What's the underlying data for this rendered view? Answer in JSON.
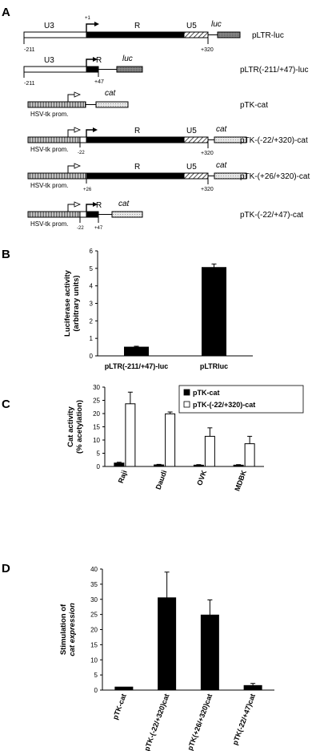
{
  "panel_labels": {
    "a": "A",
    "b": "B",
    "c": "C",
    "d": "D"
  },
  "construct_labels": {
    "u3": "U3",
    "r": "R",
    "u5": "U5",
    "luc": "luc",
    "cat": "cat",
    "hsv": "HSV-tk prom.",
    "n211": "-211",
    "p1": "+1",
    "p320": "+320",
    "p47": "+47",
    "n22": "-22",
    "p26": "+26"
  },
  "constructs": [
    {
      "name": "pLTR-luc"
    },
    {
      "name": "pLTR(-211/+47)-luc"
    },
    {
      "name": "pTK-cat"
    },
    {
      "name": "pTK-(-22/+320)-cat"
    },
    {
      "name": "pTK-(+26/+320)-cat"
    },
    {
      "name": "pTK-(-22/+47)-cat"
    }
  ],
  "chart_data": [
    {
      "panel": "B",
      "type": "bar",
      "ylabel": "Luciferase activity (arbitrary units)",
      "ylabel_lines": [
        "Luciferase activity",
        "(arbitrary units)"
      ],
      "ylim": [
        0,
        6
      ],
      "yticks": [
        "0",
        "1",
        "2",
        "3",
        "4",
        "5",
        "6"
      ],
      "categories": [
        "pLTR(-211/+47)-luc",
        "pLTRluc"
      ],
      "values": [
        0.5,
        5.05
      ],
      "errors": [
        0.05,
        0.2
      ]
    },
    {
      "panel": "C",
      "type": "bar",
      "ylabel": "Cat activity (% acetylation)",
      "ylabel_lines": [
        "Cat activity",
        "(% acetylation)"
      ],
      "ylim": [
        0,
        30
      ],
      "yticks": [
        "0",
        "5",
        "10",
        "15",
        "20",
        "25",
        "30"
      ],
      "categories": [
        "Raji",
        "Daudi",
        "OVK",
        "MDBK"
      ],
      "series": [
        {
          "name": "pTK-cat",
          "color": "#000000",
          "values": [
            1.3,
            0.6,
            0.5,
            0.5
          ],
          "errors": [
            0.3,
            0.2,
            0.2,
            0.2
          ]
        },
        {
          "name": "pTK-(-22/+320)-cat",
          "color": "#ffffff",
          "values": [
            23.7,
            19.9,
            11.4,
            8.6
          ],
          "errors": [
            4.4,
            0.7,
            3.2,
            2.8
          ]
        }
      ],
      "legend": "top-right"
    },
    {
      "panel": "D",
      "type": "bar",
      "ylabel": "Stimulation of cat expression",
      "ylabel_lines": [
        "Stimulation of",
        "cat expression"
      ],
      "ylim": [
        0,
        40
      ],
      "yticks": [
        "0",
        "5",
        "10",
        "15",
        "20",
        "25",
        "30",
        "35",
        "40"
      ],
      "categories": [
        "pTK-cat",
        "pTK-(-22/+320)cat",
        "pTK(+26/+320)cat",
        "pTK(-22/+47)cat"
      ],
      "values": [
        1,
        30.5,
        24.8,
        1.5
      ],
      "errors": [
        0,
        8.5,
        5.0,
        0.7
      ]
    }
  ]
}
